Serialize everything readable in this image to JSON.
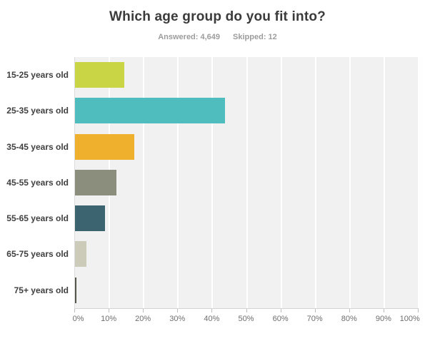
{
  "header": {
    "title": "Which age group do you fit into?",
    "answered": "Answered: 4,649",
    "skipped": "Skipped: 12"
  },
  "chart_data": {
    "type": "bar",
    "orientation": "horizontal",
    "title": "Which age group do you fit into?",
    "answered_count": "4,649",
    "skipped_count": "12",
    "categories": [
      "15-25 years old",
      "25-35 years old",
      "35-45 years old",
      "45-55 years old",
      "55-65 years old",
      "65-75 years old",
      "75+ years old"
    ],
    "values": [
      14.3,
      43.7,
      17.3,
      12.1,
      8.8,
      3.4,
      0.4
    ],
    "values_unit": "percent",
    "bar_colors": [
      "#c9d545",
      "#4fbcbd",
      "#efb02e",
      "#8b8e7d",
      "#3c6370",
      "#cccbb9",
      "#54554b"
    ],
    "xlabel": "",
    "ylabel": "",
    "xlim": [
      0,
      100
    ],
    "x_ticks": [
      {
        "label": "0%",
        "value": 0
      },
      {
        "label": "10%",
        "value": 10
      },
      {
        "label": "20%",
        "value": 20
      },
      {
        "label": "30%",
        "value": 30
      },
      {
        "label": "40%",
        "value": 40
      },
      {
        "label": "50%",
        "value": 50
      },
      {
        "label": "60%",
        "value": 60
      },
      {
        "label": "70%",
        "value": 70
      },
      {
        "label": "80%",
        "value": 80
      },
      {
        "label": "90%",
        "value": 90
      },
      {
        "label": "100%",
        "value": 100
      }
    ],
    "grid": "vertical-white-gridlines",
    "plot_background": "#f1f1f1",
    "legend": "none"
  }
}
